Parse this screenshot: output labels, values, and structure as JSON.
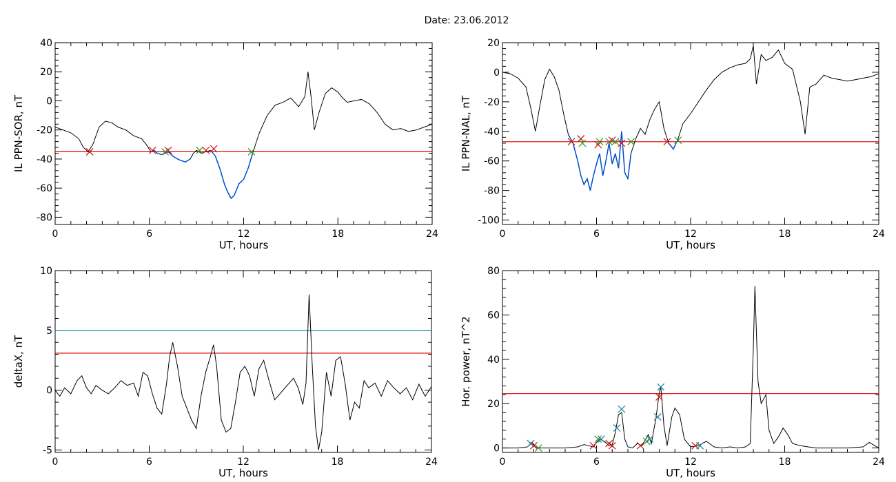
{
  "title": "Date:  23.06.2012",
  "chart_data": [
    {
      "id": "sor",
      "type": "line",
      "xlabel": "UT, hours",
      "ylabel": "IL PPN-SOR, nT",
      "xlim": [
        0,
        24
      ],
      "ylim": [
        -85,
        40
      ],
      "xticks": [
        0,
        6,
        12,
        18,
        24
      ],
      "yticks": [
        -80,
        -60,
        -40,
        -20,
        0,
        20,
        40
      ],
      "threshold": {
        "value": -35,
        "color": "#e00000"
      },
      "colors": {
        "line": "#000000",
        "segment": "#0050d0"
      },
      "series": [
        {
          "x": [
            0,
            0.5,
            1.0,
            1.5,
            1.8,
            2.1,
            2.4,
            2.8,
            3.2,
            3.6,
            4.0,
            4.5,
            5.0,
            5.5,
            5.8,
            6.1,
            6.3,
            6.5,
            6.8,
            7.0,
            7.2,
            7.5,
            7.8,
            8.0,
            8.3,
            8.6,
            8.8,
            9.0,
            9.3,
            9.6,
            9.9,
            10.2,
            10.5,
            10.8,
            11.0,
            11.2,
            11.4,
            11.7,
            12.0,
            12.3,
            12.6,
            13.0,
            13.5,
            14.0,
            14.5,
            15.0,
            15.5,
            15.9,
            16.1,
            16.3,
            16.5,
            16.8,
            17.2,
            17.6,
            18.0,
            18.3,
            18.6,
            19.0,
            19.5,
            20.0,
            20.5,
            21.0,
            21.5,
            22.0,
            22.5,
            23.0,
            23.5,
            24.0
          ],
          "y": [
            -18,
            -20,
            -22,
            -26,
            -32,
            -35,
            -30,
            -18,
            -14,
            -15,
            -18,
            -20,
            -24,
            -26,
            -30,
            -35,
            -34,
            -36,
            -37,
            -36,
            -35,
            -38,
            -40,
            -41,
            -42,
            -40,
            -36,
            -34,
            -36,
            -35,
            -34,
            -38,
            -47,
            -58,
            -63,
            -67,
            -65,
            -57,
            -54,
            -46,
            -35,
            -22,
            -10,
            -3,
            -1,
            2,
            -4,
            3,
            20,
            2,
            -20,
            -8,
            5,
            9,
            6,
            2,
            -1,
            0,
            1,
            -2,
            -8,
            -16,
            -20,
            -19,
            -21,
            -20,
            -18,
            -16
          ]
        }
      ],
      "segments": [
        {
          "x": [
            6.1,
            6.3,
            6.5,
            6.8,
            7.0,
            7.2,
            7.5,
            7.8,
            8.0,
            8.3,
            8.6
          ],
          "y": [
            -35,
            -34,
            -36,
            -37,
            -36,
            -35,
            -38,
            -40,
            -41,
            -42,
            -40
          ]
        },
        {
          "x": [
            9.9,
            10.2,
            10.5,
            10.8,
            11.0,
            11.2,
            11.4,
            11.7,
            12.0,
            12.3,
            12.6
          ],
          "y": [
            -34,
            -38,
            -47,
            -58,
            -63,
            -67,
            -65,
            -57,
            -54,
            -46,
            -35
          ]
        }
      ],
      "markers": [
        {
          "x": 2.2,
          "y": -35,
          "color": "#2e9e2e"
        },
        {
          "x": 2.2,
          "y": -35,
          "color": "#d02020"
        },
        {
          "x": 6.2,
          "y": -34,
          "color": "#d02020"
        },
        {
          "x": 7.0,
          "y": -35,
          "color": "#2e9e2e"
        },
        {
          "x": 7.2,
          "y": -34,
          "color": "#d02020"
        },
        {
          "x": 9.2,
          "y": -34,
          "color": "#2e9e2e"
        },
        {
          "x": 9.6,
          "y": -34,
          "color": "#d02020"
        },
        {
          "x": 10.1,
          "y": -33,
          "color": "#d02020"
        },
        {
          "x": 12.5,
          "y": -35,
          "color": "#2e9e2e"
        }
      ]
    },
    {
      "id": "nal",
      "type": "line",
      "xlabel": "UT, hours",
      "ylabel": "IL PPN-NAL, nT",
      "xlim": [
        0,
        24
      ],
      "ylim": [
        -103,
        20
      ],
      "xticks": [
        0,
        6,
        12,
        18,
        24
      ],
      "yticks": [
        -100,
        -80,
        -60,
        -40,
        -20,
        0,
        20
      ],
      "threshold": {
        "value": -47,
        "color": "#e00000"
      },
      "colors": {
        "line": "#000000",
        "segment": "#0050d0"
      },
      "series": [
        {
          "x": [
            0,
            0.5,
            1.0,
            1.5,
            1.8,
            2.1,
            2.4,
            2.7,
            3.0,
            3.3,
            3.6,
            3.9,
            4.2,
            4.5,
            4.8,
            5.0,
            5.2,
            5.4,
            5.6,
            5.8,
            6.0,
            6.2,
            6.4,
            6.6,
            6.8,
            7.0,
            7.2,
            7.4,
            7.6,
            7.8,
            8.0,
            8.2,
            8.5,
            8.8,
            9.1,
            9.4,
            9.7,
            10.0,
            10.3,
            10.6,
            10.9,
            11.2,
            11.5,
            12.0,
            12.5,
            13.0,
            13.5,
            14.0,
            14.5,
            15.0,
            15.5,
            15.8,
            16.0,
            16.2,
            16.5,
            16.8,
            17.2,
            17.6,
            18.0,
            18.5,
            19.0,
            19.3,
            19.6,
            20.0,
            20.5,
            21.0,
            22.0,
            22.5,
            23.0,
            23.5,
            24.0
          ],
          "y": [
            0,
            -1,
            -4,
            -10,
            -24,
            -40,
            -22,
            -5,
            2,
            -3,
            -12,
            -28,
            -42,
            -48,
            -60,
            -70,
            -76,
            -72,
            -80,
            -70,
            -62,
            -55,
            -70,
            -60,
            -48,
            -62,
            -55,
            -65,
            -40,
            -68,
            -72,
            -55,
            -45,
            -38,
            -42,
            -32,
            -25,
            -20,
            -38,
            -48,
            -52,
            -45,
            -35,
            -28,
            -20,
            -12,
            -5,
            0,
            3,
            5,
            6,
            9,
            18,
            -8,
            12,
            8,
            10,
            15,
            6,
            2,
            -20,
            -42,
            -10,
            -8,
            -2,
            -4,
            -6,
            -5,
            -4,
            -3,
            -1
          ]
        }
      ],
      "segments": [
        {
          "x": [
            4.2,
            4.5,
            4.8,
            5.0,
            5.2,
            5.4,
            5.6,
            5.8,
            6.0,
            6.2,
            6.4,
            6.6,
            6.8,
            7.0,
            7.2,
            7.4,
            7.6,
            7.8,
            8.0,
            8.2
          ],
          "y": [
            -42,
            -48,
            -60,
            -70,
            -76,
            -72,
            -80,
            -70,
            -62,
            -55,
            -70,
            -60,
            -48,
            -62,
            -55,
            -65,
            -40,
            -68,
            -72,
            -55
          ]
        },
        {
          "x": [
            10.6,
            10.9,
            11.2
          ],
          "y": [
            -48,
            -52,
            -45
          ]
        }
      ],
      "markers": [
        {
          "x": 4.4,
          "y": -47,
          "color": "#d02020"
        },
        {
          "x": 5.0,
          "y": -45,
          "color": "#d02020"
        },
        {
          "x": 5.1,
          "y": -48,
          "color": "#2e9e2e"
        },
        {
          "x": 6.1,
          "y": -49,
          "color": "#d02020"
        },
        {
          "x": 6.2,
          "y": -47,
          "color": "#2e9e2e"
        },
        {
          "x": 6.8,
          "y": -47,
          "color": "#2e9e2e"
        },
        {
          "x": 7.0,
          "y": -46,
          "color": "#d02020"
        },
        {
          "x": 7.2,
          "y": -47,
          "color": "#2e9e2e"
        },
        {
          "x": 7.6,
          "y": -48,
          "color": "#d02020"
        },
        {
          "x": 8.2,
          "y": -47,
          "color": "#2e9e2e"
        },
        {
          "x": 10.5,
          "y": -47,
          "color": "#d02020"
        },
        {
          "x": 11.2,
          "y": -46,
          "color": "#2e9e2e"
        }
      ]
    },
    {
      "id": "deltax",
      "type": "line",
      "xlabel": "UT, hours",
      "ylabel": "deltaX, nT",
      "xlim": [
        0,
        24
      ],
      "ylim": [
        -5.2,
        10
      ],
      "xticks": [
        0,
        6,
        12,
        18,
        24
      ],
      "yticks": [
        -5,
        0,
        5,
        10
      ],
      "hlines": [
        {
          "value": 5,
          "color": "#1f8aa8"
        },
        {
          "value": 3.1,
          "color": "#e00000"
        }
      ],
      "colors": {
        "line": "#000000"
      },
      "series": [
        {
          "x": [
            0,
            0.3,
            0.6,
            1.0,
            1.4,
            1.7,
            2.0,
            2.3,
            2.6,
            3.0,
            3.4,
            3.8,
            4.2,
            4.6,
            5.0,
            5.3,
            5.6,
            5.9,
            6.2,
            6.5,
            6.8,
            7.1,
            7.3,
            7.5,
            7.8,
            8.1,
            8.4,
            8.7,
            9.0,
            9.3,
            9.6,
            9.9,
            10.1,
            10.3,
            10.6,
            10.9,
            11.2,
            11.5,
            11.8,
            12.1,
            12.4,
            12.7,
            13.0,
            13.3,
            13.6,
            14.0,
            14.4,
            14.8,
            15.2,
            15.5,
            15.8,
            16.0,
            16.2,
            16.4,
            16.6,
            16.8,
            17.0,
            17.3,
            17.6,
            17.9,
            18.2,
            18.5,
            18.8,
            19.1,
            19.4,
            19.7,
            20.0,
            20.4,
            20.8,
            21.2,
            21.6,
            22.0,
            22.4,
            22.8,
            23.2,
            23.6,
            24.0
          ],
          "y": [
            0,
            -0.5,
            0.2,
            -0.3,
            0.8,
            1.2,
            0.2,
            -0.3,
            0.4,
            0,
            -0.3,
            0.2,
            0.8,
            0.4,
            0.6,
            -0.5,
            1.5,
            1.2,
            -0.3,
            -1.5,
            -2.0,
            0.5,
            2.8,
            4.0,
            2.0,
            -0.5,
            -1.5,
            -2.5,
            -3.2,
            -0.5,
            1.5,
            2.8,
            3.8,
            2.0,
            -2.5,
            -3.5,
            -3.2,
            -1.0,
            1.5,
            2.0,
            1.2,
            -0.5,
            1.8,
            2.5,
            1.0,
            -0.8,
            -0.2,
            0.4,
            1.0,
            0.2,
            -1.2,
            0.6,
            8.0,
            2.0,
            -3.0,
            -5.0,
            -3.5,
            1.5,
            -0.5,
            2.5,
            2.8,
            0.5,
            -2.5,
            -1.0,
            -1.5,
            0.8,
            0.2,
            0.6,
            -0.5,
            0.8,
            0.2,
            -0.3,
            0.2,
            -0.8,
            0.5,
            -0.5,
            0.3
          ]
        }
      ]
    },
    {
      "id": "power",
      "type": "line",
      "xlabel": "UT, hours",
      "ylabel": "Hor. power, nT^2",
      "xlim": [
        0,
        24
      ],
      "ylim": [
        -2,
        80
      ],
      "xticks": [
        0,
        6,
        12,
        18,
        24
      ],
      "yticks": [
        0,
        20,
        40,
        60,
        80
      ],
      "threshold": {
        "value": 24.5,
        "color": "#e00000"
      },
      "colors": {
        "line": "#000000"
      },
      "series": [
        {
          "x": [
            0,
            1.0,
            1.6,
            1.9,
            2.1,
            2.4,
            3.0,
            4.0,
            4.8,
            5.2,
            5.5,
            5.8,
            6.0,
            6.2,
            6.5,
            6.8,
            7.0,
            7.2,
            7.4,
            7.6,
            7.8,
            8.0,
            8.3,
            8.6,
            8.9,
            9.1,
            9.3,
            9.5,
            9.8,
            10.0,
            10.1,
            10.3,
            10.5,
            10.8,
            11.0,
            11.3,
            11.6,
            12.0,
            12.5,
            13.0,
            13.5,
            14.0,
            14.5,
            15.0,
            15.5,
            15.8,
            16.0,
            16.1,
            16.3,
            16.5,
            16.8,
            17.0,
            17.3,
            17.6,
            17.9,
            18.2,
            18.5,
            19.0,
            19.5,
            20.0,
            21.0,
            22.0,
            23.0,
            23.4,
            24.0
          ],
          "y": [
            0,
            0,
            0.5,
            2.5,
            0.5,
            0,
            0,
            0,
            0.5,
            1.5,
            1.0,
            0.5,
            2.5,
            4.0,
            3.0,
            1.0,
            1.5,
            7.0,
            15.0,
            16.0,
            4.0,
            0.5,
            0,
            2.0,
            1.0,
            3.5,
            6.0,
            2.0,
            14.0,
            25.0,
            27.5,
            10.0,
            1.0,
            14.0,
            18.0,
            15.0,
            4.0,
            0.5,
            1.0,
            3.0,
            0.5,
            0,
            0.5,
            0,
            0.5,
            2.0,
            45.0,
            73.0,
            30.0,
            20.0,
            24.0,
            8.0,
            2.0,
            5.0,
            9.0,
            6.0,
            2.0,
            1.0,
            0.5,
            0,
            0,
            0,
            0.5,
            2.5,
            0
          ]
        }
      ],
      "markers": [
        {
          "x": 1.8,
          "y": 2,
          "color": "#1f8aa8"
        },
        {
          "x": 2.0,
          "y": 1,
          "color": "#d02020"
        },
        {
          "x": 2.3,
          "y": 0,
          "color": "#2e9e2e"
        },
        {
          "x": 5.8,
          "y": 1,
          "color": "#d02020"
        },
        {
          "x": 6.1,
          "y": 4,
          "color": "#2e9e2e"
        },
        {
          "x": 6.3,
          "y": 4,
          "color": "#1f8aa8"
        },
        {
          "x": 6.8,
          "y": 2,
          "color": "#d02020"
        },
        {
          "x": 7.0,
          "y": 1,
          "color": "#d02020"
        },
        {
          "x": 7.3,
          "y": 9,
          "color": "#1f8aa8"
        },
        {
          "x": 7.6,
          "y": 17.5,
          "color": "#1f8aa8"
        },
        {
          "x": 8.8,
          "y": 1,
          "color": "#d02020"
        },
        {
          "x": 9.2,
          "y": 3,
          "color": "#2e9e2e"
        },
        {
          "x": 9.4,
          "y": 4,
          "color": "#1f8aa8"
        },
        {
          "x": 9.9,
          "y": 14,
          "color": "#1f8aa8"
        },
        {
          "x": 10.0,
          "y": 23,
          "color": "#d02020"
        },
        {
          "x": 10.1,
          "y": 27.5,
          "color": "#1f8aa8"
        },
        {
          "x": 12.3,
          "y": 1,
          "color": "#d02020"
        },
        {
          "x": 12.6,
          "y": 1,
          "color": "#1f8aa8"
        }
      ]
    }
  ]
}
